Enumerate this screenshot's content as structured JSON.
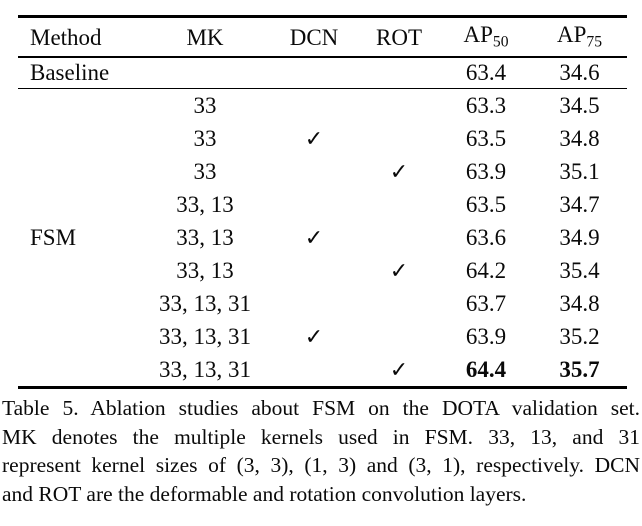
{
  "table": {
    "header": {
      "method": "Method",
      "mk": "MK",
      "dcn": "DCN",
      "rot": "ROT",
      "ap50": {
        "base": "AP",
        "sub": "50"
      },
      "ap75": {
        "base": "AP",
        "sub": "75"
      }
    },
    "baseline": {
      "method": "Baseline",
      "mk": "",
      "dcn": "",
      "rot": "",
      "ap50": "63.4",
      "ap75": "34.6"
    },
    "group_label": "FSM",
    "check_symbol": "✓",
    "rows": [
      {
        "method": "",
        "mk": "33",
        "dcn": "",
        "rot": "",
        "ap50": "63.3",
        "ap75": "34.5"
      },
      {
        "method": "",
        "mk": "33",
        "dcn": "✓",
        "rot": "",
        "ap50": "63.5",
        "ap75": "34.8"
      },
      {
        "method": "",
        "mk": "33",
        "dcn": "",
        "rot": "✓",
        "ap50": "63.9",
        "ap75": "35.1"
      },
      {
        "method": "",
        "mk": "33, 13",
        "dcn": "",
        "rot": "",
        "ap50": "63.5",
        "ap75": "34.7"
      },
      {
        "method": "FSM",
        "mk": "33, 13",
        "dcn": "✓",
        "rot": "",
        "ap50": "63.6",
        "ap75": "34.9"
      },
      {
        "method": "",
        "mk": "33, 13",
        "dcn": "",
        "rot": "✓",
        "ap50": "64.2",
        "ap75": "35.4"
      },
      {
        "method": "",
        "mk": "33, 13, 31",
        "dcn": "",
        "rot": "",
        "ap50": "63.7",
        "ap75": "34.8"
      },
      {
        "method": "",
        "mk": "33, 13, 31",
        "dcn": "✓",
        "rot": "",
        "ap50": "63.9",
        "ap75": "35.2"
      },
      {
        "method": "",
        "mk": "33, 13, 31",
        "dcn": "",
        "rot": "✓",
        "ap50": "64.4",
        "ap75": "35.7"
      }
    ]
  },
  "caption": {
    "lines": [
      "Table 5. Ablation studies about FSM on the DOTA validation set.",
      "MK denotes the multiple kernels used in FSM. 33, 13, and 31",
      "represent kernel sizes of (3, 3), (1, 3) and (3, 1), respectively. DCN",
      "and ROT are the deformable and rotation convolution layers."
    ],
    "full_text": "Table 5. Ablation studies about FSM on the DOTA validation set. MK denotes the multiple kernels used in FSM. 33, 13, and 31 represent kernel sizes of (3, 3), (1, 3) and (3, 1), respectively. DCN and ROT are the deformable and rotation convolution layers."
  }
}
